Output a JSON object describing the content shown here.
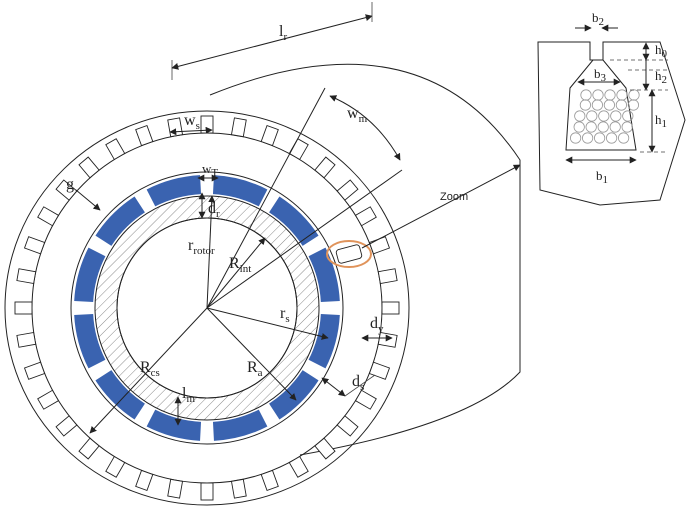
{
  "colors": {
    "magnet": "#3a63b0",
    "highlight": "#e0935a",
    "line": "#222222",
    "hatch": "#8a8a8a"
  },
  "labels": {
    "lr": {
      "main": "l",
      "sub": "r"
    },
    "wm": {
      "main": "w",
      "sub": "m"
    },
    "ws": {
      "main": "w",
      "sub": "s"
    },
    "wt": {
      "main": "w",
      "sub": "T"
    },
    "g": {
      "main": "g"
    },
    "dr": {
      "main": "d",
      "sub": "r"
    },
    "rrotor": {
      "main": "r",
      "sub": "rotor"
    },
    "rint": {
      "main": "R",
      "sub": "int"
    },
    "rs": {
      "main": "r",
      "sub": "s"
    },
    "dy": {
      "main": "d",
      "sub": "y"
    },
    "rcs": {
      "main": "R",
      "sub": "cs"
    },
    "ra": {
      "main": "R",
      "sub": "a"
    },
    "ds": {
      "main": "d",
      "sub": "s"
    },
    "lm": {
      "main": "l",
      "sub": "m"
    },
    "zoom": "Zoom",
    "b2": {
      "main": "b",
      "sub": "2"
    },
    "b3": {
      "main": "b",
      "sub": "3"
    },
    "b1": {
      "main": "b",
      "sub": "1"
    },
    "h0": {
      "main": "h",
      "sub": "0"
    },
    "h2": {
      "main": "h",
      "sub": "2"
    },
    "h1": {
      "main": "h",
      "sub": "1"
    }
  },
  "stator": {
    "slot_count": 36
  },
  "rotor": {
    "magnet_count": 12
  }
}
